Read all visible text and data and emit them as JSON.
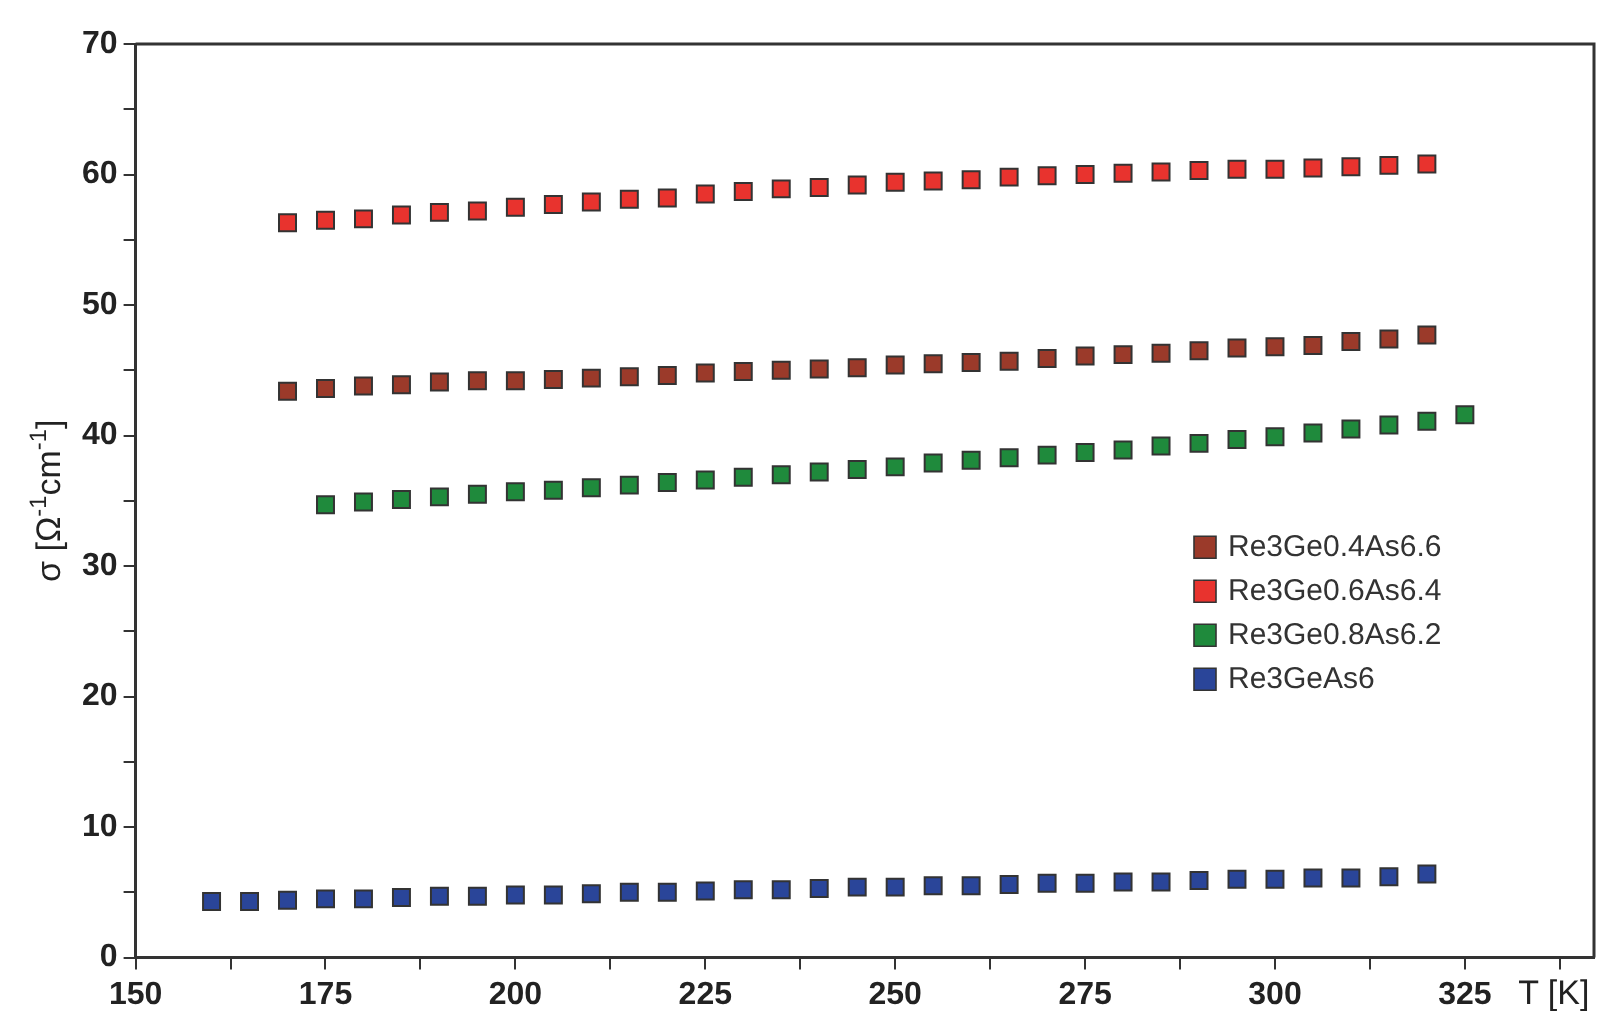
{
  "chart_data": {
    "type": "scatter",
    "xlabel": "T [K]",
    "ylabel": "σ [Ω$^{-1}$cm$^{-1}$]",
    "marker": "square",
    "grid": false,
    "legend": "right",
    "xlim": [
      150,
      342
    ],
    "xticks": [
      150,
      {
        "value": 162.5,
        "label": null
      },
      175,
      {
        "value": 187.5,
        "label": null
      },
      200,
      {
        "value": 212.5,
        "label": null
      },
      225,
      {
        "value": 237.5,
        "label": null
      },
      250,
      {
        "value": 262.5,
        "label": null
      },
      275,
      {
        "value": 287.5,
        "label": null
      },
      300,
      {
        "value": 312.5,
        "label": null
      },
      325,
      {
        "value": 337.5,
        "label": null
      }
    ],
    "ylim": [
      0,
      70
    ],
    "yticks": [
      0,
      {
        "value": 5,
        "label": null
      },
      10,
      {
        "value": 15,
        "label": null
      },
      20,
      {
        "value": 25,
        "label": null
      },
      30,
      {
        "value": 35,
        "label": null
      },
      40,
      {
        "value": 45,
        "label": null
      },
      50,
      {
        "value": 55,
        "label": null
      },
      60,
      {
        "value": 65,
        "label": null
      },
      70
    ],
    "series": [
      {
        "name": "Re3Ge0.4As6.6",
        "color": "#9b3a2a",
        "x": [
          170,
          175,
          180,
          185,
          190,
          195,
          200,
          205,
          210,
          215,
          220,
          225,
          230,
          235,
          240,
          245,
          250,
          255,
          260,
          265,
          270,
          275,
          280,
          285,
          290,
          295,
          300,
          305,
          310,
          315,
          320
        ],
        "values": [
          43.4,
          43.6,
          43.8,
          43.9,
          44.1,
          44.2,
          44.2,
          44.3,
          44.4,
          44.5,
          44.6,
          44.8,
          44.9,
          45.0,
          45.1,
          45.2,
          45.4,
          45.5,
          45.6,
          45.7,
          45.9,
          46.1,
          46.2,
          46.3,
          46.5,
          46.7,
          46.8,
          46.9,
          47.2,
          47.4,
          47.7
        ]
      },
      {
        "name": "Re3Ge0.6As6.4",
        "color": "#e8332e",
        "x": [
          170,
          175,
          180,
          185,
          190,
          195,
          200,
          205,
          210,
          215,
          220,
          225,
          230,
          235,
          240,
          245,
          250,
          255,
          260,
          265,
          270,
          275,
          280,
          285,
          290,
          295,
          300,
          305,
          310,
          315,
          320
        ],
        "values": [
          56.3,
          56.5,
          56.6,
          56.9,
          57.1,
          57.2,
          57.5,
          57.7,
          57.9,
          58.1,
          58.2,
          58.5,
          58.7,
          58.9,
          59.0,
          59.2,
          59.4,
          59.5,
          59.6,
          59.8,
          59.9,
          60.0,
          60.1,
          60.2,
          60.3,
          60.4,
          60.4,
          60.5,
          60.6,
          60.7,
          60.8
        ]
      },
      {
        "name": "Re3Ge0.8As6.2",
        "color": "#1f8a3c",
        "x": [
          175,
          180,
          185,
          190,
          195,
          200,
          205,
          210,
          215,
          220,
          225,
          230,
          235,
          240,
          245,
          250,
          255,
          260,
          265,
          270,
          275,
          280,
          285,
          290,
          295,
          300,
          305,
          310,
          315,
          320,
          325
        ],
        "values": [
          34.7,
          34.9,
          35.1,
          35.3,
          35.5,
          35.7,
          35.8,
          36.0,
          36.2,
          36.4,
          36.6,
          36.8,
          37.0,
          37.2,
          37.4,
          37.6,
          37.9,
          38.1,
          38.3,
          38.5,
          38.7,
          38.9,
          39.2,
          39.4,
          39.7,
          39.9,
          40.2,
          40.5,
          40.8,
          41.1,
          41.6
        ]
      },
      {
        "name": "Re3GeAs6",
        "color": "#2a4599",
        "x": [
          160,
          165,
          170,
          175,
          180,
          185,
          190,
          195,
          200,
          205,
          210,
          215,
          220,
          225,
          230,
          235,
          240,
          245,
          250,
          255,
          260,
          265,
          270,
          275,
          280,
          285,
          290,
          295,
          300,
          305,
          310,
          315,
          320
        ],
        "values": [
          4.3,
          4.3,
          4.4,
          4.5,
          4.5,
          4.6,
          4.7,
          4.7,
          4.8,
          4.8,
          4.9,
          5.0,
          5.0,
          5.1,
          5.2,
          5.2,
          5.3,
          5.4,
          5.4,
          5.5,
          5.5,
          5.6,
          5.7,
          5.7,
          5.8,
          5.8,
          5.9,
          6.0,
          6.0,
          6.1,
          6.1,
          6.2,
          6.4
        ]
      }
    ]
  }
}
